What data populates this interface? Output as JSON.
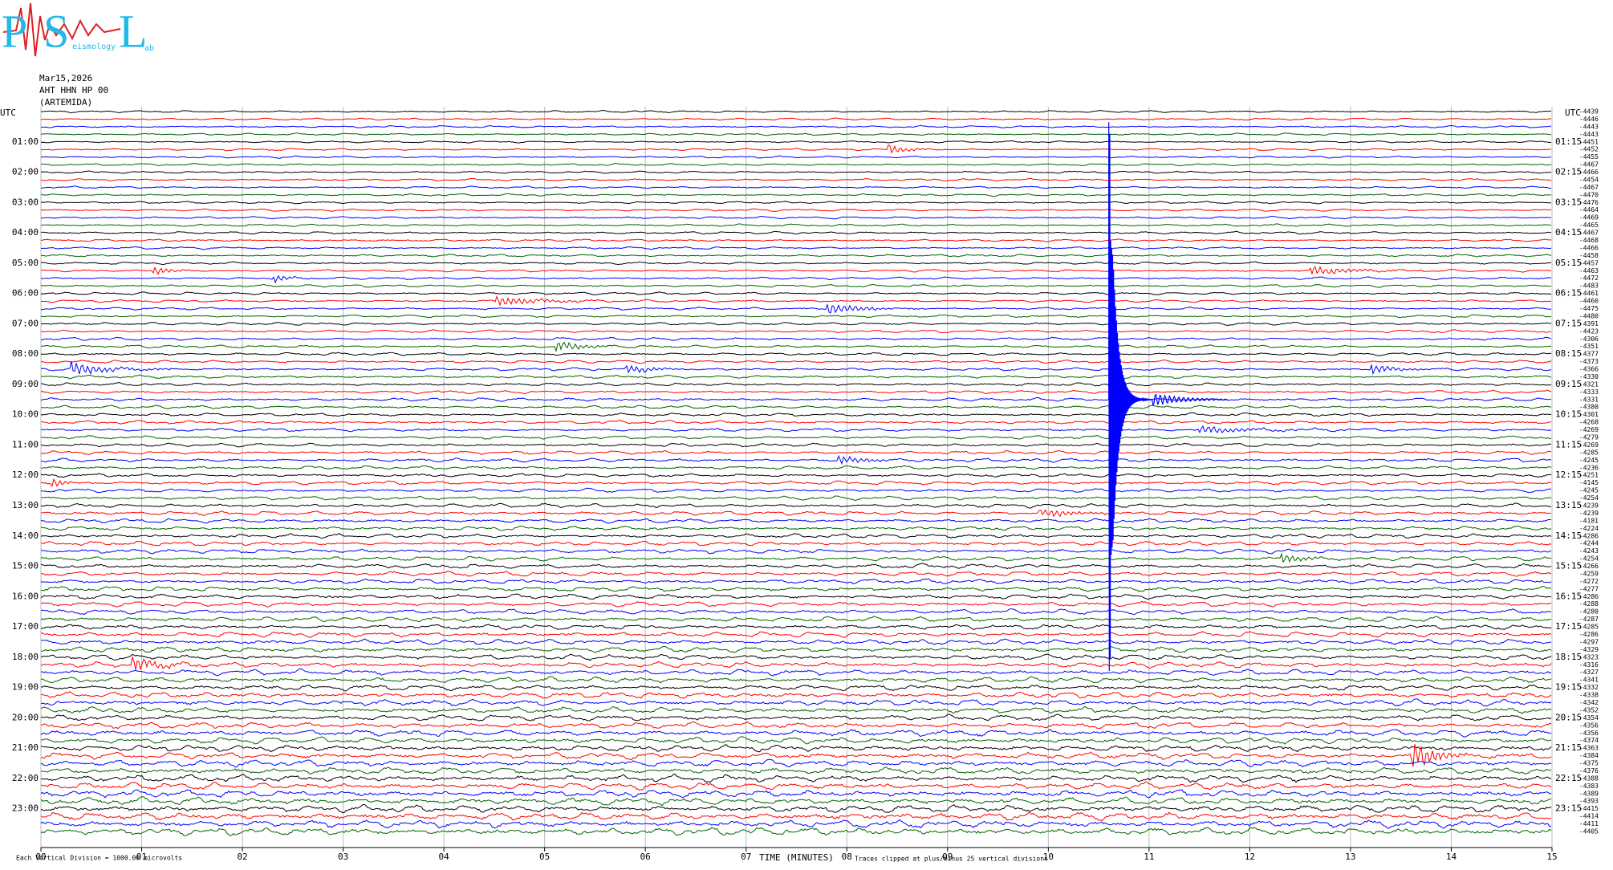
{
  "logo": {
    "letters": [
      "P",
      "S",
      "L"
    ],
    "small": [
      "eismology",
      "ab"
    ]
  },
  "header": {
    "date": "Mar15,2026",
    "station": "AHT HHN HP 00",
    "name": "(ARTEMIDA)"
  },
  "chart_data": {
    "type": "helicorder",
    "x_label": "TIME (MINUTES)",
    "left_axis_label": "UTC",
    "right_axis_label": "UTC",
    "xlim": [
      0,
      15
    ],
    "xticks": [
      {
        "value": 0,
        "label": "00"
      },
      {
        "value": 1,
        "label": "01"
      },
      {
        "value": 2,
        "label": "02"
      },
      {
        "value": 3,
        "label": "03"
      },
      {
        "value": 4,
        "label": "04"
      },
      {
        "value": 5,
        "label": "05"
      },
      {
        "value": 6,
        "label": "06"
      },
      {
        "value": 7,
        "label": "07"
      },
      {
        "value": 8,
        "label": "08"
      },
      {
        "value": 9,
        "label": "09"
      },
      10,
      11,
      12,
      13,
      14,
      15
    ],
    "grid": true,
    "trace_colors": [
      "#000000",
      "#ff0000",
      "#0000ff",
      "#006400"
    ],
    "left_labels": [
      null,
      null,
      null,
      null,
      "01:00",
      null,
      null,
      null,
      "02:00",
      null,
      null,
      null,
      "03:00",
      null,
      null,
      null,
      "04:00",
      null,
      null,
      null,
      "05:00",
      null,
      null,
      null,
      "06:00",
      null,
      null,
      null,
      "07:00",
      null,
      null,
      null,
      "08:00",
      null,
      null,
      null,
      "09:00",
      null,
      null,
      null,
      "10:00",
      null,
      null,
      null,
      "11:00",
      null,
      null,
      null,
      "12:00",
      null,
      null,
      null,
      "13:00",
      null,
      null,
      null,
      "14:00",
      null,
      null,
      null,
      "15:00",
      null,
      null,
      null,
      "16:00",
      null,
      null,
      null,
      "17:00",
      null,
      null,
      null,
      "18:00",
      null,
      null,
      null,
      "19:00",
      null,
      null,
      null,
      "20:00",
      null,
      null,
      null,
      "21:00",
      null,
      null,
      null,
      "22:00",
      null,
      null,
      null,
      "23:00",
      null,
      null,
      null
    ],
    "right_labels": [
      null,
      null,
      null,
      null,
      "01:15",
      null,
      null,
      null,
      "02:15",
      null,
      null,
      null,
      "03:15",
      null,
      null,
      null,
      "04:15",
      null,
      null,
      null,
      "05:15",
      null,
      null,
      null,
      "06:15",
      null,
      null,
      null,
      "07:15",
      null,
      null,
      null,
      "08:15",
      null,
      null,
      null,
      "09:15",
      null,
      null,
      null,
      "10:15",
      null,
      null,
      null,
      "11:15",
      null,
      null,
      null,
      "12:15",
      null,
      null,
      null,
      "13:15",
      null,
      null,
      null,
      "14:15",
      null,
      null,
      null,
      "15:15",
      null,
      null,
      null,
      "16:15",
      null,
      null,
      null,
      "17:15",
      null,
      null,
      null,
      "18:15",
      null,
      null,
      null,
      "19:15",
      null,
      null,
      null,
      "20:15",
      null,
      null,
      null,
      "21:15",
      null,
      null,
      null,
      "22:15",
      null,
      null,
      null,
      "23:15",
      null,
      null,
      null
    ],
    "offsets": [
      -4439,
      -4446,
      -4443,
      -4443,
      -4451,
      -4452,
      -4455,
      -4467,
      -4466,
      -4454,
      -4467,
      -4470,
      -4476,
      -4464,
      -4469,
      -4465,
      -4467,
      -4468,
      -4466,
      -4458,
      -4457,
      -4463,
      -4472,
      -4483,
      -4461,
      -4460,
      -4475,
      -4480,
      -4391,
      -4423,
      -4306,
      -4351,
      -4377,
      -4373,
      -4366,
      -4330,
      -4321,
      -4333,
      -4331,
      -4380,
      -4301,
      -4268,
      -4269,
      -4279,
      -4269,
      -4285,
      -4245,
      -4236,
      -4251,
      -4145,
      -4245,
      -4254,
      -4239,
      -4239,
      -4181,
      -4224,
      -4286,
      -4244,
      -4243,
      -4254,
      -4266,
      -4259,
      -4272,
      -4277,
      -4286,
      -4288,
      -4280,
      -4287,
      -4285,
      -4286,
      -4297,
      -4329,
      -4323,
      -4316,
      -4327,
      -4341,
      -4332,
      -4338,
      -4342,
      -4352,
      -4354,
      -4356,
      -4356,
      -4374,
      -4363,
      -4384,
      -4375,
      -4376,
      -4388,
      -4383,
      -4389,
      -4393,
      -4415,
      -4414,
      -4411,
      -4405
    ],
    "footer_left": "Each Vertical Division = 1000.00 microvolts",
    "footer_right": "Traces clipped at plus/minus 25 vertical divisions"
  }
}
